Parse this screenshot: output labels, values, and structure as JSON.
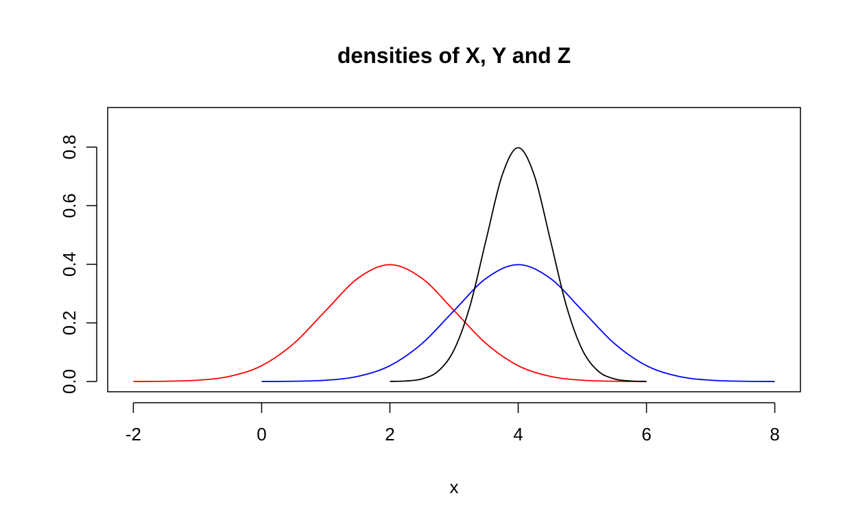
{
  "chart_data": {
    "type": "line",
    "title": "densities of X, Y and Z",
    "xlabel": "x",
    "ylabel": "",
    "xlim": [
      -2.4,
      8.4
    ],
    "ylim": [
      -0.035,
      0.935
    ],
    "x_ticks": [
      -2,
      0,
      2,
      4,
      6,
      8
    ],
    "x_tick_labels": [
      "-2",
      "0",
      "2",
      "4",
      "6",
      "8"
    ],
    "y_ticks": [
      0.0,
      0.2,
      0.4,
      0.6,
      0.8
    ],
    "y_tick_labels": [
      "0.0",
      "0.2",
      "0.4",
      "0.6",
      "0.8"
    ],
    "grid": false,
    "legend": "none",
    "series": [
      {
        "color": "#ff0000",
        "x": [
          -2.0,
          -1.5,
          -1.0,
          -0.5,
          0.0,
          0.5,
          1.0,
          1.5,
          2.0,
          2.5,
          3.0,
          3.5,
          4.0,
          4.5,
          5.0,
          5.5,
          6.0
        ],
        "y": [
          0.0001,
          0.0009,
          0.0044,
          0.0175,
          0.054,
          0.1295,
          0.242,
          0.3521,
          0.3989,
          0.3521,
          0.242,
          0.1295,
          0.054,
          0.0175,
          0.0044,
          0.0009,
          0.0001
        ]
      },
      {
        "color": "#0000ff",
        "x": [
          0.0,
          0.5,
          1.0,
          1.5,
          2.0,
          2.5,
          3.0,
          3.5,
          4.0,
          4.5,
          5.0,
          5.5,
          6.0,
          6.5,
          7.0,
          7.5,
          8.0
        ],
        "y": [
          0.0001,
          0.0009,
          0.0044,
          0.0175,
          0.054,
          0.1295,
          0.242,
          0.3521,
          0.3989,
          0.3521,
          0.242,
          0.1295,
          0.054,
          0.0175,
          0.0044,
          0.0009,
          0.0001
        ]
      },
      {
        "color": "#000000",
        "x": [
          2.0,
          2.25,
          2.5,
          2.75,
          3.0,
          3.25,
          3.5,
          3.75,
          4.0,
          4.25,
          4.5,
          4.75,
          5.0,
          5.25,
          5.5,
          5.75,
          6.0
        ],
        "y": [
          0.0003,
          0.0018,
          0.0089,
          0.035,
          0.108,
          0.259,
          0.484,
          0.704,
          0.7979,
          0.704,
          0.484,
          0.259,
          0.108,
          0.035,
          0.0089,
          0.0018,
          0.0003
        ]
      }
    ]
  }
}
